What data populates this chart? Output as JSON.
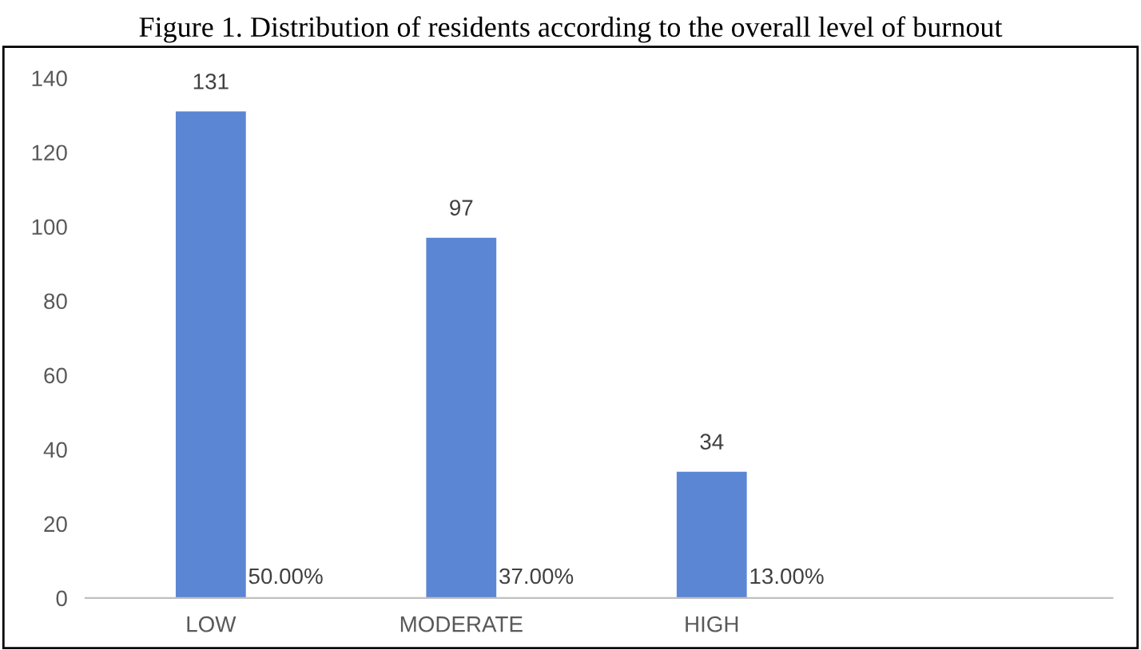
{
  "chart_data": {
    "type": "bar",
    "title": "Figure 1. Distribution of residents according to the overall level of burnout",
    "categories": [
      "LOW",
      "MODERATE",
      "HIGH"
    ],
    "values": [
      131,
      97,
      34
    ],
    "color": "#5b86d4",
    "data_labels": true,
    "annotations": [
      "50.00%",
      "37.00%",
      "13.00%"
    ],
    "ylim": [
      0,
      140
    ],
    "yticks": [
      0,
      20,
      40,
      60,
      80,
      100,
      120,
      140
    ],
    "grid": false,
    "legend": false
  }
}
